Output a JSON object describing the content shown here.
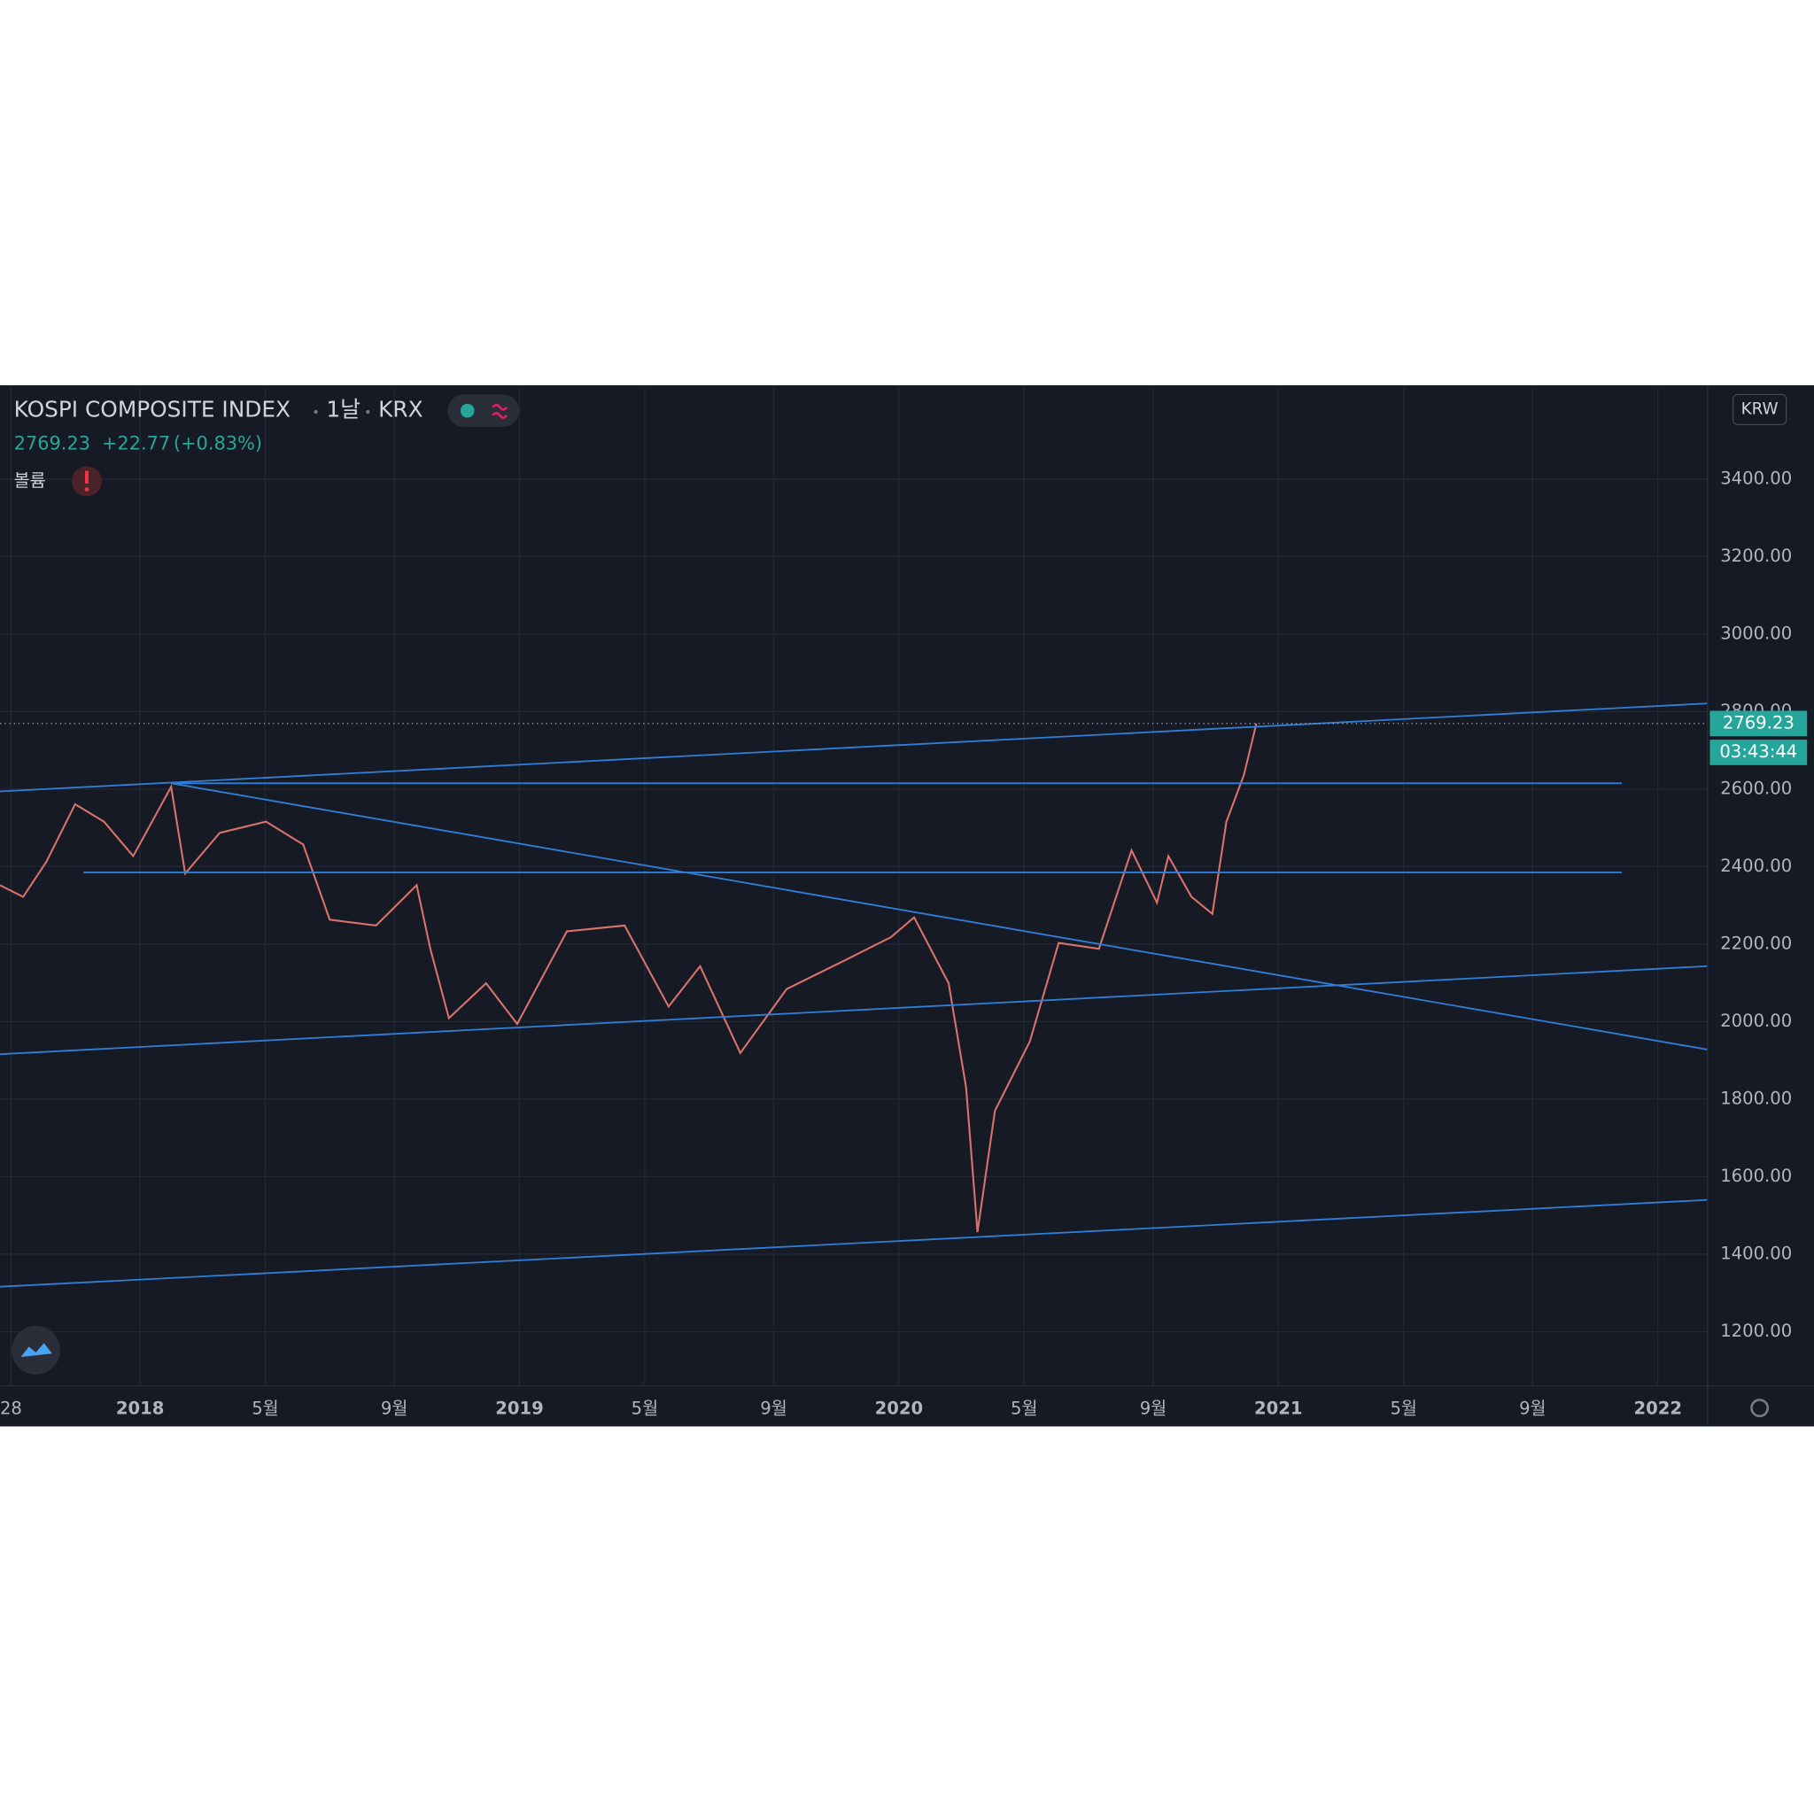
{
  "chart_data": {
    "type": "line",
    "title": "KOSPI COMPOSITE INDEX",
    "interval": "1날",
    "exchange": "KRX",
    "last_price": 2769.23,
    "change": "+22.77",
    "change_pct": "(+0.83%)",
    "volume_label": "볼륨",
    "currency": "KRW",
    "countdown": "03:43:44",
    "x": [
      2017.631,
      2017.692,
      2017.753,
      2017.829,
      2017.905,
      2017.982,
      2018.082,
      2018.119,
      2018.21,
      2018.332,
      2018.43,
      2018.5,
      2018.622,
      2018.729,
      2018.765,
      2018.814,
      2018.912,
      2018.994,
      2019.125,
      2019.277,
      2019.393,
      2019.476,
      2019.582,
      2019.704,
      2019.857,
      2019.979,
      2020.04,
      2020.131,
      2020.177,
      2020.207,
      2020.253,
      2020.345,
      2020.421,
      2020.527,
      2020.613,
      2020.68,
      2020.71,
      2020.771,
      2020.826,
      2020.863,
      2020.909,
      2020.942
    ],
    "series": [
      {
        "name": "KOSPI",
        "color": "#d9726d",
        "values": [
          2352,
          2322,
          2412,
          2561,
          2516,
          2427,
          2606,
          2382,
          2487,
          2516,
          2457,
          2263,
          2248,
          2352,
          2188,
          2009,
          2099,
          1994,
          2233,
          2248,
          2039,
          2143,
          1919,
          2084,
          2158,
          2218,
          2269,
          2099,
          1830,
          1457,
          1770,
          1949,
          2203,
          2188,
          2442,
          2307,
          2427,
          2322,
          2278,
          2516,
          2636,
          2769.23
        ]
      }
    ],
    "trendlines": {
      "color": "#2f7fd8",
      "lines": [
        [
          [
            2017.631,
            2594
          ],
          [
            2022.131,
            2821
          ]
        ],
        [
          [
            2018.082,
            2615
          ],
          [
            2021.905,
            2615
          ]
        ],
        [
          [
            2017.851,
            2385
          ],
          [
            2021.905,
            2385
          ]
        ],
        [
          [
            2018.082,
            2615
          ],
          [
            2022.131,
            1928
          ]
        ],
        [
          [
            2017.631,
            1916
          ],
          [
            2022.131,
            2143
          ]
        ],
        [
          [
            2017.631,
            1316
          ],
          [
            2022.131,
            1540
          ]
        ]
      ]
    },
    "xlim": [
      2017.631,
      2022.131
    ],
    "xticks": [
      {
        "value": 2017.66,
        "label": "28"
      },
      2018,
      {
        "value": 2018.33,
        "label": "5월"
      },
      {
        "value": 2018.67,
        "label": "9월"
      },
      2019,
      {
        "value": 2019.33,
        "label": "5월"
      },
      {
        "value": 2019.67,
        "label": "9월"
      },
      2020,
      {
        "value": 2020.33,
        "label": "5월"
      },
      {
        "value": 2020.67,
        "label": "9월"
      },
      2021,
      {
        "value": 2021.33,
        "label": "5월"
      },
      {
        "value": 2021.67,
        "label": "9월"
      },
      2022
    ],
    "ylim": [
      1060,
      3636
    ],
    "yticks": [
      {
        "value": 1200,
        "label": "1200.00"
      },
      {
        "value": 1400,
        "label": "1400.00"
      },
      {
        "value": 1600,
        "label": "1600.00"
      },
      {
        "value": 1800,
        "label": "1800.00"
      },
      {
        "value": 2000,
        "label": "2000.00"
      },
      {
        "value": 2200,
        "label": "2200.00"
      },
      {
        "value": 2400,
        "label": "2400.00"
      },
      {
        "value": 2600,
        "label": "2600.00"
      },
      {
        "value": 2800,
        "label": "2800.00"
      },
      {
        "value": 3000,
        "label": "3000.00"
      },
      {
        "value": 3200,
        "label": "3200.00"
      },
      {
        "value": 3400,
        "label": "3400.00"
      }
    ],
    "grid": true
  }
}
